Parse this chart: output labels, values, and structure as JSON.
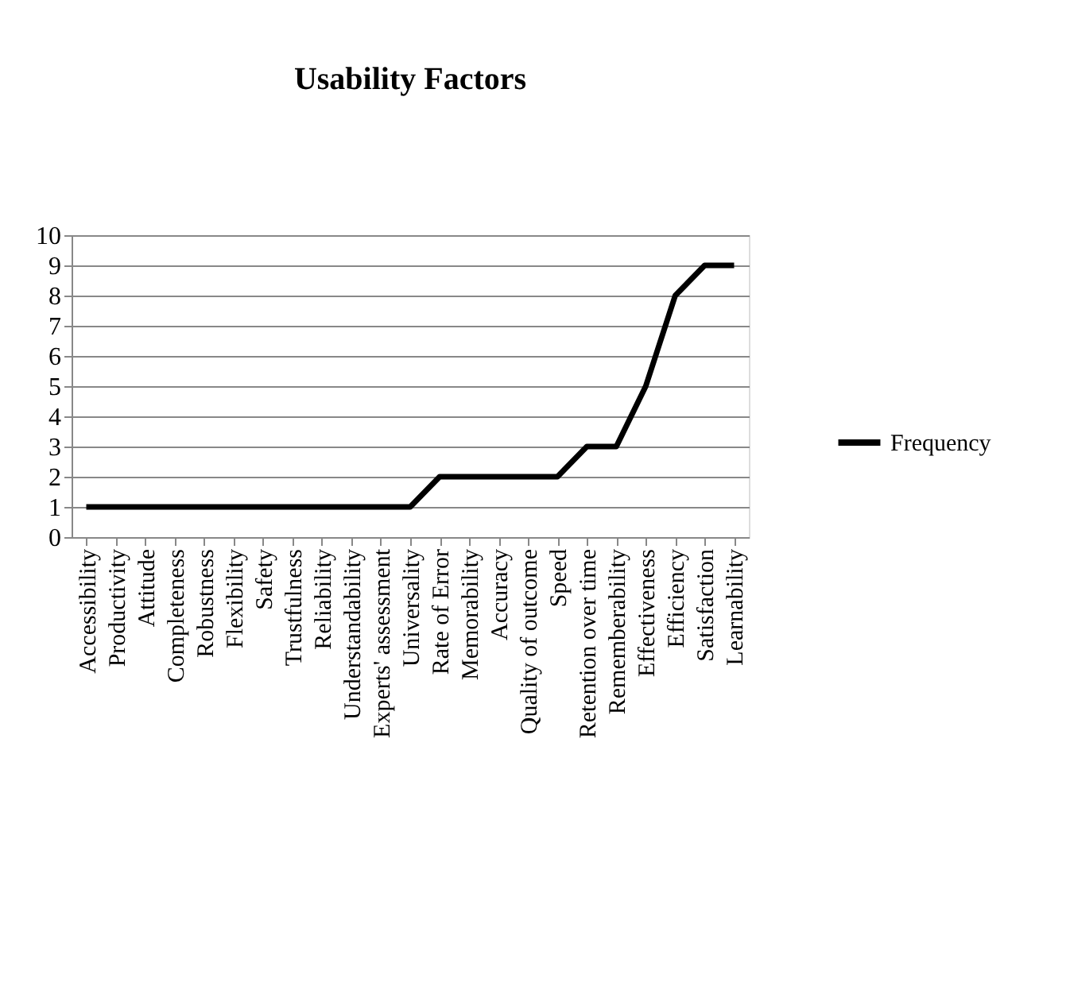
{
  "chart_data": {
    "type": "line",
    "title": "Usability Factors",
    "categories": [
      "Accessibility",
      "Productivity",
      "Attitude",
      "Completeness",
      "Robustness",
      "Flexibility",
      "Safety",
      "Trustfulness",
      "Reliability",
      "Understandability",
      "Experts' assessment",
      "Universality",
      "Rate of Error",
      "Memorability",
      "Accuracy",
      "Quality of outcome",
      "Speed",
      "Retention over time",
      "Rememberability",
      "Effectiveness",
      "Efficiency",
      "Satisfaction",
      "Learnability"
    ],
    "series": [
      {
        "name": "Frequency",
        "color": "#000000",
        "values": [
          1,
          1,
          1,
          1,
          1,
          1,
          1,
          1,
          1,
          1,
          1,
          1,
          2,
          2,
          2,
          2,
          2,
          3,
          3,
          5,
          8,
          9,
          9
        ]
      }
    ],
    "ylim": [
      0,
      10
    ],
    "yticks": [
      0,
      1,
      2,
      3,
      4,
      5,
      6,
      7,
      8,
      9,
      10
    ],
    "grid": "y",
    "legend": "right",
    "marker": "none",
    "line_style": "solid"
  }
}
